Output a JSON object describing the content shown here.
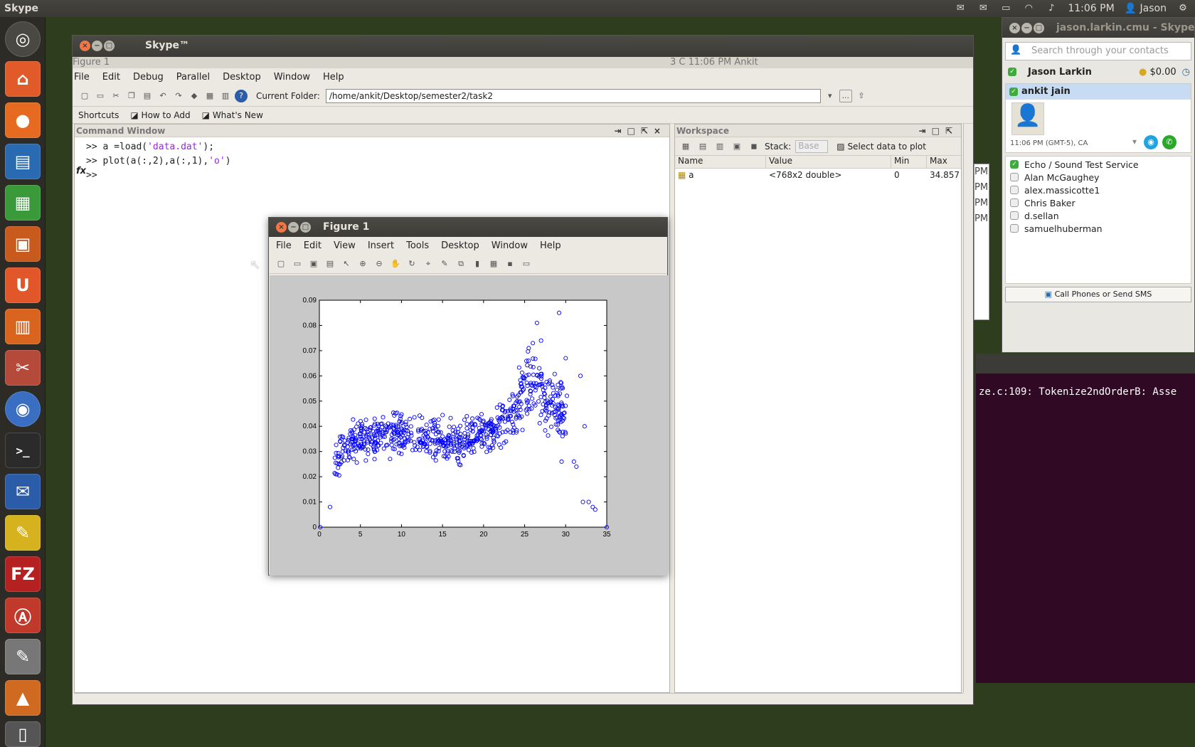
{
  "top_panel": {
    "app_name": "Skype",
    "time": "11:06 PM",
    "user": "Jason",
    "icons": [
      "mail-icon",
      "battery-icon",
      "wifi-icon",
      "volume-icon",
      "user-icon",
      "gear-icon"
    ]
  },
  "launcher": {
    "items": [
      "dash-icon",
      "files-icon",
      "firefox-icon",
      "writer-icon",
      "calc-icon",
      "impress-icon",
      "ubuntu-one-icon",
      "software-center-icon",
      "settings-icon",
      "chromium-icon",
      "terminal-icon",
      "thunderbird-icon",
      "notes-icon",
      "filezilla-icon",
      "acrobat-icon",
      "text-editor-icon",
      "matlab-icon",
      "trash-icon"
    ],
    "letters": {
      "ubuntu_one": "U",
      "filezilla": "FZ",
      "terminal": ">_"
    }
  },
  "terminal": {
    "line": "ze.c:109: Tokenize2ndOrderB: Asse"
  },
  "matlab": {
    "title": "Skype™",
    "ghost_title": "Figure 1",
    "ghost_panel": "3 C     11:06 PM   Ankit",
    "menu": [
      "File",
      "Edit",
      "Debug",
      "Parallel",
      "Desktop",
      "Window",
      "Help"
    ],
    "current_folder_label": "Current Folder:",
    "current_folder": "/home/ankit/Desktop/semester2/task2",
    "browse_label": "...",
    "shortcuts": [
      "Shortcuts",
      "How to Add",
      "What's New"
    ],
    "command_window": {
      "title": "Command Window",
      "lines": [
        {
          "prompt": ">> ",
          "code_a": "a =load(",
          "string": "'data.dat'",
          "code_b": ");"
        },
        {
          "prompt": ">> ",
          "code_a": "plot(a(:,2),a(:,1),",
          "string": "'o'",
          "code_b": ")"
        }
      ],
      "fx": "fx",
      "prompt": ">>"
    },
    "workspace": {
      "title": "Workspace",
      "stack_label": "Stack:",
      "stack_value": "Base",
      "select_label": "Select data to plot",
      "columns": [
        "Name",
        "Value",
        "Min",
        "Max"
      ],
      "rows": [
        {
          "name": "a",
          "value": "<768x2 double>",
          "min": "0",
          "max": "34.857"
        }
      ],
      "side_labels": [
        "PM",
        "PM",
        "PM",
        "PM"
      ]
    }
  },
  "figure": {
    "title": "Figure 1",
    "menu": [
      "File",
      "Edit",
      "View",
      "Insert",
      "Tools",
      "Desktop",
      "Window",
      "Help"
    ]
  },
  "chart_data": {
    "type": "scatter",
    "marker": "o",
    "color": "#0000ff",
    "xlim": [
      0,
      35
    ],
    "ylim": [
      0,
      0.09
    ],
    "xticks": [
      0,
      5,
      10,
      15,
      20,
      25,
      30,
      35
    ],
    "yticks": [
      0,
      0.01,
      0.02,
      0.03,
      0.04,
      0.05,
      0.06,
      0.07,
      0.08,
      0.09
    ],
    "ytick_labels": [
      "0",
      "0.01",
      "0.02",
      "0.03",
      "0.04",
      "0.05",
      "0.06",
      "0.07",
      "0.08",
      "0.09"
    ],
    "trend": {
      "x": [
        1.3,
        2.5,
        4,
        6,
        8,
        10,
        12,
        14,
        16,
        18,
        20,
        22,
        23,
        24,
        25,
        26,
        27,
        28,
        29,
        30
      ],
      "y": [
        0.022,
        0.029,
        0.034,
        0.035,
        0.036,
        0.037,
        0.036,
        0.035,
        0.034,
        0.035,
        0.037,
        0.04,
        0.043,
        0.047,
        0.053,
        0.058,
        0.054,
        0.05,
        0.047,
        0.043
      ]
    },
    "outliers": [
      {
        "x": 0.1,
        "y": 0.0
      },
      {
        "x": 1.3,
        "y": 0.008
      },
      {
        "x": 26.5,
        "y": 0.081
      },
      {
        "x": 27,
        "y": 0.074
      },
      {
        "x": 29.2,
        "y": 0.085
      },
      {
        "x": 30,
        "y": 0.067
      },
      {
        "x": 29.5,
        "y": 0.026
      },
      {
        "x": 31,
        "y": 0.026
      },
      {
        "x": 31.3,
        "y": 0.024
      },
      {
        "x": 32.1,
        "y": 0.01
      },
      {
        "x": 32.8,
        "y": 0.01
      },
      {
        "x": 33.3,
        "y": 0.008
      },
      {
        "x": 33.6,
        "y": 0.007
      },
      {
        "x": 35,
        "y": 0.0
      },
      {
        "x": 31.8,
        "y": 0.06
      },
      {
        "x": 32.3,
        "y": 0.04
      },
      {
        "x": 25.5,
        "y": 0.071
      },
      {
        "x": 26,
        "y": 0.073
      }
    ]
  },
  "skype": {
    "title": "jason.larkin.cmu - Skype",
    "search_placeholder": "Search through your contacts",
    "user": "Jason Larkin",
    "credit": "$0.00",
    "selected_contact": {
      "name": "ankit jain",
      "time": "11:06 PM (GMT-5), CA"
    },
    "contacts": [
      {
        "name": "Echo / Sound Test Service",
        "online": true
      },
      {
        "name": "Alan McGaughey",
        "online": false
      },
      {
        "name": "alex.massicotte1",
        "online": false
      },
      {
        "name": "Chris Baker",
        "online": false
      },
      {
        "name": "d.sellan",
        "online": false
      },
      {
        "name": "samuelhuberman",
        "online": false
      }
    ],
    "call_button": "Call Phones or Send SMS"
  }
}
